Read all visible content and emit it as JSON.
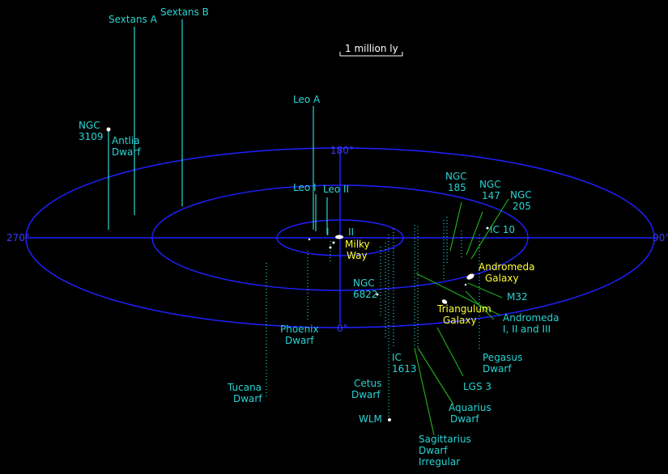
{
  "scale_bar": "1 million ly",
  "angles": {
    "top": "180°",
    "left": "270°",
    "right": "90°",
    "bottom": "0°"
  },
  "labels": {
    "sextans_a": "Sextans A",
    "sextans_b": "Sextans B",
    "ngc3109_1": "NGC",
    "ngc3109_2": "3109",
    "antlia_1": "Antlia",
    "antlia_2": "Dwarf",
    "leo_a": "Leo A",
    "leo_i": "Leo I",
    "leo_ii": "Leo II",
    "ngc185_1": "NGC",
    "ngc185_2": "185",
    "ngc147_1": "NGC",
    "ngc147_2": "147",
    "ngc205_1": "NGC",
    "ngc205_2": "205",
    "ic10": "IC 10",
    "roman_i": "I",
    "roman_ii": "II",
    "milky_way_1": "Milky",
    "milky_way_2": "Way",
    "andromeda_1": "Andromeda",
    "andromeda_2": "Galaxy",
    "m32": "M32",
    "ngc6822_1": "NGC",
    "ngc6822_2": "6822",
    "triangulum_1": "Triangulum",
    "triangulum_2": "Galaxy",
    "and_sats_1": "Andromeda",
    "and_sats_2": "I, II and III",
    "phoenix_1": "Phoenix",
    "phoenix_2": "Dwarf",
    "pegasus_1": "Pegasus",
    "pegasus_2": "Dwarf",
    "ic1613_1": "IC",
    "ic1613_2": "1613",
    "lgs3": "LGS 3",
    "tucana_1": "Tucana",
    "tucana_2": "Dwarf",
    "cetus_1": "Cetus",
    "cetus_2": "Dwarf",
    "aquarius_1": "Aquarius",
    "aquarius_2": "Dwarf",
    "wlm": "WLM",
    "sagittarius_1": "Sagittarius",
    "sagittarius_2": "Dwarf",
    "sagittarius_3": "Irregular"
  },
  "colors": {
    "background": "#000000",
    "rings": "#2020ff",
    "labels": "#29d4d4",
    "major_galaxy_labels": "#ffff33",
    "leader_lines": "#1ea81e",
    "stems": "#29d4d4"
  }
}
